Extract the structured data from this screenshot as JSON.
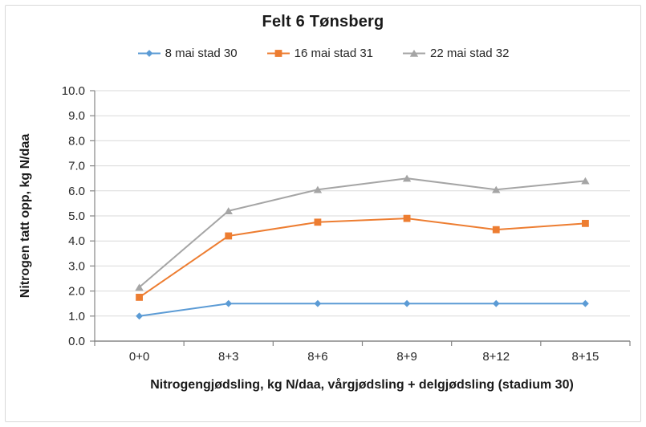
{
  "window": {
    "background": "#FFFFFF",
    "border_color": "#D9D9D9"
  },
  "chart_data": {
    "type": "line",
    "title": "Felt 6 Tønsberg",
    "categories": [
      "0+0",
      "8+3",
      "8+6",
      "8+9",
      "8+12",
      "8+15"
    ],
    "series": [
      {
        "name": "8 mai stad 30",
        "color": "#5B9BD5",
        "marker": "diamond",
        "values": [
          1.0,
          1.5,
          1.5,
          1.5,
          1.5,
          1.5
        ]
      },
      {
        "name": "16 mai stad 31",
        "color": "#ED7D31",
        "marker": "square",
        "values": [
          1.75,
          4.2,
          4.75,
          4.9,
          4.45,
          4.7
        ]
      },
      {
        "name": "22 mai stad 32",
        "color": "#A5A5A5",
        "marker": "triangle",
        "values": [
          2.15,
          5.2,
          6.05,
          6.5,
          6.05,
          6.4
        ]
      }
    ],
    "xlabel": "Nitrogengjødsling, kg N/daa, vårgjødsling + delgjødsling (stadium 30)",
    "ylabel": "Nitrogen tatt opp, kg N/daa",
    "ylim": [
      0,
      10
    ],
    "ytick_step": 1,
    "ytick_decimals": 1,
    "grid": "horizontal",
    "legend_position": "top",
    "colors": {
      "gridline": "#D9D9D9",
      "axis": "#858585",
      "tick_text": "#262626"
    }
  }
}
